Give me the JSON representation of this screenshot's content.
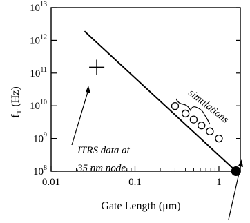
{
  "chart_data": {
    "type": "scatter",
    "xlabel": "Gate Length (μm)",
    "ylabel_main": "f",
    "ylabel_sub": "T",
    "ylabel_unit": " (Hz)",
    "x_scale": "log",
    "y_scale": "log",
    "xlim": [
      0.01,
      1.8
    ],
    "ylim": [
      100000000.0,
      10000000000000.0
    ],
    "grid": false,
    "x_ticks": [
      {
        "value": 0.01,
        "label": "0.01"
      },
      {
        "value": 0.1,
        "label": "0.1"
      },
      {
        "value": 1,
        "label": "1"
      }
    ],
    "y_ticks": [
      {
        "exp": 8,
        "base": "10",
        "sup": "8"
      },
      {
        "exp": 9,
        "base": "10",
        "sup": "9"
      },
      {
        "exp": 10,
        "base": "10",
        "sup": "10"
      },
      {
        "exp": 11,
        "base": "10",
        "sup": "11"
      },
      {
        "exp": 12,
        "base": "10",
        "sup": "12"
      },
      {
        "exp": 13,
        "base": "10",
        "sup": "13"
      }
    ],
    "trend_line": {
      "x": [
        0.025,
        1.6
      ],
      "y": [
        1900000000000.0,
        100000000.0
      ]
    },
    "simulations": {
      "x": [
        0.3,
        0.4,
        0.5,
        0.62,
        0.78,
        1.0
      ],
      "y": [
        9800000000.0,
        5800000000.0,
        3800000000.0,
        2500000000.0,
        1650000000.0,
        1000000000.0
      ]
    },
    "itrs_point": {
      "x": 0.035,
      "y": 150000000000.0
    },
    "end_point": {
      "x": 1.6,
      "y": 100000000.0
    },
    "annotations": {
      "simulations": "simulations",
      "itrs_line1": "ITRS data at",
      "itrs_line2": "35 nm node."
    }
  }
}
